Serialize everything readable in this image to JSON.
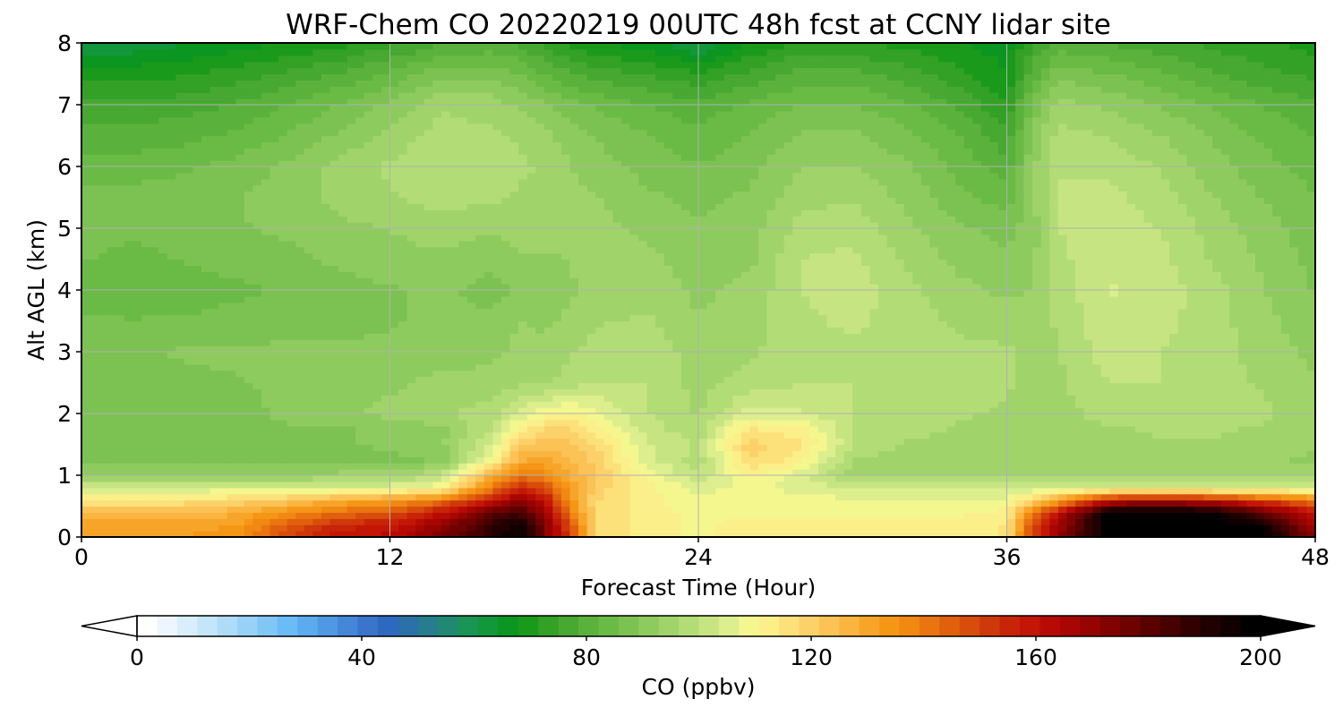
{
  "chart_data": {
    "type": "heatmap",
    "title": "WRF-Chem CO  20220219 00UTC 48h fcst at CCNY lidar site",
    "xlabel": "Forecast Time (Hour)",
    "ylabel": "Alt AGL (km)",
    "xlim": [
      0,
      48
    ],
    "ylim": [
      0,
      8
    ],
    "x_ticks": [
      0,
      12,
      24,
      36,
      48
    ],
    "y_ticks": [
      0,
      1,
      2,
      3,
      4,
      5,
      6,
      7,
      8
    ],
    "grid": true,
    "x": [
      0,
      2,
      4,
      6,
      8,
      10,
      12,
      14,
      16,
      17,
      18,
      19,
      20,
      22,
      24,
      26,
      28,
      30,
      32,
      34,
      36,
      37,
      38,
      40,
      42,
      44,
      46,
      48
    ],
    "y": [
      0,
      0.2,
      0.4,
      0.6,
      0.8,
      1.0,
      1.25,
      1.5,
      1.75,
      2.0,
      2.5,
      3.0,
      3.5,
      4.0,
      4.5,
      5.0,
      5.5,
      6.0,
      6.5,
      7.0,
      7.5,
      8.0
    ],
    "values": [
      [
        132,
        132,
        132,
        135,
        150,
        160,
        162,
        175,
        190,
        198,
        175,
        150,
        118,
        112,
        110,
        112,
        112,
        112,
        112,
        112,
        115,
        150,
        170,
        200,
        200,
        200,
        200,
        172
      ],
      [
        130,
        130,
        130,
        132,
        145,
        155,
        158,
        170,
        188,
        196,
        175,
        148,
        118,
        112,
        110,
        112,
        112,
        112,
        112,
        112,
        115,
        148,
        168,
        200,
        200,
        200,
        195,
        165
      ],
      [
        126,
        126,
        126,
        128,
        135,
        142,
        146,
        160,
        180,
        185,
        170,
        140,
        118,
        112,
        110,
        110,
        110,
        110,
        110,
        110,
        112,
        140,
        160,
        200,
        200,
        198,
        180,
        158
      ],
      [
        115,
        115,
        115,
        118,
        122,
        128,
        132,
        140,
        160,
        170,
        160,
        135,
        118,
        112,
        108,
        110,
        108,
        108,
        108,
        108,
        108,
        118,
        130,
        160,
        165,
        160,
        150,
        140
      ],
      [
        104,
        104,
        104,
        104,
        105,
        105,
        106,
        110,
        140,
        155,
        150,
        132,
        120,
        112,
        106,
        108,
        106,
        104,
        104,
        104,
        104,
        104,
        104,
        104,
        104,
        104,
        104,
        104
      ],
      [
        92,
        92,
        92,
        92,
        93,
        94,
        95,
        100,
        128,
        140,
        138,
        128,
        122,
        110,
        100,
        112,
        105,
        95,
        95,
        95,
        95,
        95,
        95,
        95,
        95,
        95,
        95,
        95
      ],
      [
        88,
        88,
        88,
        88,
        88,
        88,
        88,
        90,
        110,
        128,
        130,
        125,
        120,
        105,
        98,
        118,
        112,
        96,
        95,
        94,
        94,
        93,
        93,
        94,
        95,
        95,
        94,
        92
      ],
      [
        86,
        86,
        86,
        88,
        89,
        89,
        90,
        92,
        104,
        120,
        124,
        122,
        118,
        104,
        100,
        120,
        115,
        100,
        96,
        95,
        94,
        93,
        93,
        95,
        96,
        96,
        95,
        93
      ],
      [
        86,
        86,
        86,
        88,
        89,
        89,
        90,
        92,
        100,
        112,
        118,
        118,
        112,
        102,
        97,
        115,
        112,
        100,
        98,
        96,
        95,
        93,
        94,
        96,
        97,
        97,
        96,
        94
      ],
      [
        86,
        86,
        86,
        88,
        90,
        92,
        94,
        96,
        98,
        104,
        110,
        112,
        108,
        100,
        96,
        105,
        104,
        100,
        98,
        97,
        96,
        94,
        95,
        98,
        99,
        98,
        97,
        94
      ],
      [
        86,
        87,
        88,
        89,
        90,
        91,
        92,
        94,
        94,
        96,
        96,
        98,
        100,
        100,
        95,
        98,
        100,
        100,
        99,
        98,
        97,
        95,
        96,
        100,
        100,
        98,
        96,
        93
      ],
      [
        86,
        88,
        90,
        90,
        90,
        90,
        90,
        91,
        92,
        94,
        94,
        96,
        98,
        100,
        94,
        96,
        98,
        99,
        98,
        97,
        97,
        95,
        96,
        102,
        100,
        98,
        95,
        92
      ],
      [
        86,
        86,
        86,
        87,
        88,
        88,
        89,
        90,
        90,
        93,
        92,
        94,
        96,
        97,
        93,
        95,
        99,
        101,
        98,
        96,
        95,
        94,
        97,
        103,
        101,
        98,
        94,
        90
      ],
      [
        84,
        83,
        84,
        85,
        86,
        88,
        89,
        90,
        88,
        90,
        90,
        92,
        95,
        95,
        92,
        94,
        100,
        102,
        98,
        94,
        92,
        93,
        98,
        104,
        102,
        98,
        93,
        89
      ],
      [
        86,
        84,
        86,
        87,
        88,
        90,
        91,
        92,
        90,
        92,
        92,
        93,
        95,
        94,
        91,
        92,
        100,
        101,
        96,
        92,
        90,
        92,
        99,
        103,
        101,
        96,
        92,
        88
      ],
      [
        88,
        87,
        88,
        89,
        90,
        92,
        93,
        95,
        93,
        95,
        95,
        94,
        94,
        92,
        90,
        91,
        98,
        99,
        94,
        90,
        88,
        91,
        100,
        102,
        100,
        95,
        91,
        87
      ],
      [
        87,
        87,
        88,
        89,
        91,
        94,
        96,
        98,
        97,
        96,
        96,
        94,
        93,
        90,
        88,
        90,
        95,
        96,
        92,
        87,
        84,
        92,
        100,
        101,
        98,
        93,
        89,
        86
      ],
      [
        84,
        84,
        85,
        87,
        90,
        94,
        97,
        100,
        100,
        97,
        96,
        93,
        91,
        88,
        86,
        88,
        93,
        93,
        90,
        85,
        80,
        92,
        100,
        99,
        96,
        91,
        87,
        84
      ],
      [
        80,
        80,
        81,
        83,
        86,
        90,
        94,
        98,
        97,
        96,
        94,
        91,
        89,
        86,
        83,
        86,
        90,
        90,
        87,
        83,
        76,
        90,
        98,
        96,
        93,
        89,
        85,
        82
      ],
      [
        76,
        76,
        77,
        79,
        82,
        86,
        90,
        96,
        95,
        92,
        90,
        87,
        85,
        82,
        80,
        83,
        86,
        86,
        83,
        78,
        72,
        87,
        94,
        92,
        89,
        85,
        82,
        79
      ],
      [
        70,
        70,
        71,
        73,
        76,
        79,
        83,
        88,
        88,
        86,
        82,
        79,
        77,
        75,
        72,
        76,
        80,
        80,
        77,
        73,
        68,
        80,
        88,
        86,
        83,
        79,
        76,
        74
      ],
      [
        60,
        62,
        64,
        66,
        68,
        70,
        74,
        78,
        80,
        78,
        74,
        70,
        68,
        66,
        60,
        68,
        72,
        72,
        70,
        68,
        66,
        75,
        80,
        78,
        76,
        74,
        72,
        70
      ]
    ]
  },
  "colorbar": {
    "label": "CO  (ppbv)",
    "range": [
      0,
      200
    ],
    "ticks": [
      0,
      40,
      80,
      120,
      160,
      200
    ],
    "extend": "both",
    "colors": [
      "#ffffff",
      "#edf6fd",
      "#d9eefb",
      "#c4e6fa",
      "#aedcf8",
      "#97d1f7",
      "#80c7f6",
      "#69bcf5",
      "#5cabef",
      "#4f98e4",
      "#4486d8",
      "#3a74cc",
      "#2f68bf",
      "#2b70a8",
      "#277c8e",
      "#218973",
      "#1a9554",
      "#12973a",
      "#0a9620",
      "#1a9a1a",
      "#33a026",
      "#47a832",
      "#5ab23c",
      "#6aba46",
      "#7cc252",
      "#8ecb5e",
      "#a0d46a",
      "#b2dc76",
      "#c6e582",
      "#dcee8e",
      "#f4f78e",
      "#fbef8a",
      "#fce07a",
      "#fcd16a",
      "#fbc256",
      "#fab440",
      "#f7a528",
      "#f59614",
      "#f08812",
      "#e97410",
      "#e0600e",
      "#d84c0c",
      "#cf380a",
      "#c82408",
      "#c41606",
      "#b80a04",
      "#a80602",
      "#960402",
      "#820201",
      "#6e0201",
      "#5a0100",
      "#460100",
      "#320000",
      "#200000",
      "#100000",
      "#000000"
    ]
  }
}
